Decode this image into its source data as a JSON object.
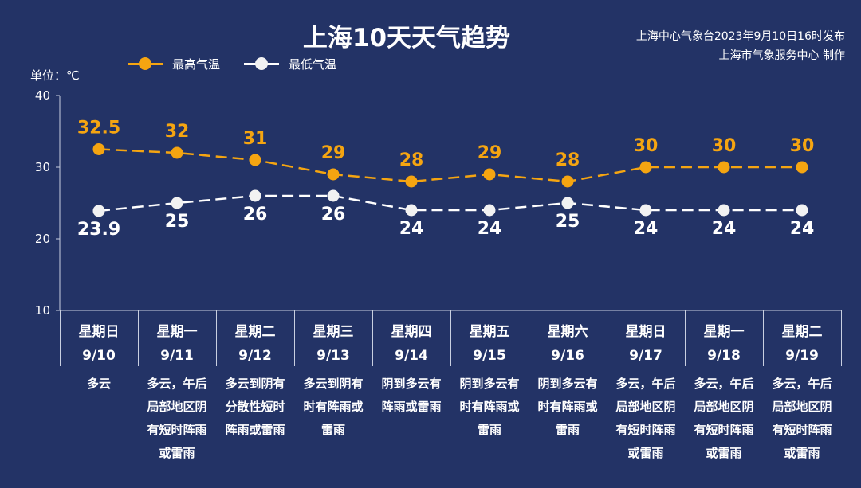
{
  "header": {
    "title": "上海10天天气趋势",
    "source_line1": "上海中心气象台2023年9月10日16时发布",
    "source_line2": "上海市气象服务中心 制作"
  },
  "colors": {
    "high": "#f5a511",
    "low": "#ffffff",
    "background": "#233366"
  },
  "chart_data": {
    "type": "line",
    "ylabel": "单位：℃",
    "ylim": [
      10,
      40
    ],
    "yticks": [
      "40",
      "30",
      "20",
      "10"
    ],
    "legend_position": "top-left",
    "categories": [
      "星期日 9/10",
      "星期一 9/11",
      "星期二 9/12",
      "星期三 9/13",
      "星期四 9/14",
      "星期五 9/15",
      "星期六 9/16",
      "星期日 9/17",
      "星期一 9/18",
      "星期二 9/19"
    ],
    "series": [
      {
        "name": "最高气温",
        "values": [
          32.5,
          32,
          31,
          29,
          28,
          29,
          28,
          30,
          30,
          30
        ],
        "labels": [
          "32.5",
          "32",
          "31",
          "29",
          "28",
          "29",
          "28",
          "30",
          "30",
          "30"
        ]
      },
      {
        "name": "最低气温",
        "values": [
          23.9,
          25,
          26,
          26,
          24,
          24,
          25,
          24,
          24,
          24
        ],
        "labels": [
          "23.9",
          "25",
          "26",
          "26",
          "24",
          "24",
          "25",
          "24",
          "24",
          "24"
        ]
      }
    ]
  },
  "days": [
    {
      "weekday": "星期日",
      "date": "9/10",
      "weather": "多云"
    },
    {
      "weekday": "星期一",
      "date": "9/11",
      "weather": "多云，午后局部地区阴有短时阵雨或雷雨"
    },
    {
      "weekday": "星期二",
      "date": "9/12",
      "weather": "多云到阴有分散性短时阵雨或雷雨"
    },
    {
      "weekday": "星期三",
      "date": "9/13",
      "weather": "多云到阴有时有阵雨或雷雨"
    },
    {
      "weekday": "星期四",
      "date": "9/14",
      "weather": "阴到多云有阵雨或雷雨"
    },
    {
      "weekday": "星期五",
      "date": "9/15",
      "weather": "阴到多云有时有阵雨或雷雨"
    },
    {
      "weekday": "星期六",
      "date": "9/16",
      "weather": "阴到多云有时有阵雨或雷雨"
    },
    {
      "weekday": "星期日",
      "date": "9/17",
      "weather": "多云，午后局部地区阴有短时阵雨或雷雨"
    },
    {
      "weekday": "星期一",
      "date": "9/18",
      "weather": "多云，午后局部地区阴有短时阵雨或雷雨"
    },
    {
      "weekday": "星期二",
      "date": "9/19",
      "weather": "多云，午后局部地区阴有短时阵雨或雷雨"
    }
  ]
}
